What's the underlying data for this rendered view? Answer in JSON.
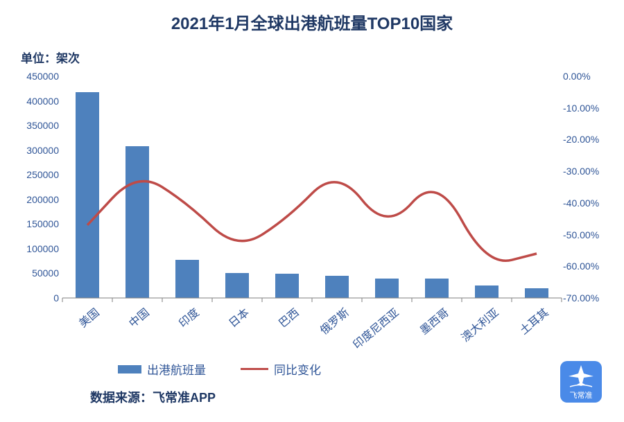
{
  "title": "2021年1月全球出港航班量TOP10国家",
  "title_fontsize": 24,
  "title_color": "#1f3864",
  "unit_label": "单位：架次",
  "unit_fontsize": 17,
  "source_label": "数据来源：飞常准APP",
  "source_fontsize": 18,
  "logo_text": "飞常准",
  "logo_bg": "#4a8ae8",
  "chart": {
    "type": "bar+line",
    "categories": [
      "美国",
      "中国",
      "印度",
      "日本",
      "巴西",
      "俄罗斯",
      "印度尼西亚",
      "墨西哥",
      "澳大利亚",
      "土耳其"
    ],
    "bar_series": {
      "name": "出港航班量",
      "values": [
        418000,
        308000,
        78000,
        50000,
        49000,
        45000,
        40000,
        40000,
        25000,
        20000
      ],
      "color": "#4e81bd",
      "bar_width": 0.48
    },
    "line_series": {
      "name": "同比变化",
      "values": [
        -47,
        -30,
        -40,
        -55,
        -45,
        -29,
        -49,
        -31,
        -60,
        -56
      ],
      "color": "#be4b48",
      "line_width": 3.5
    },
    "y_left": {
      "min": 0,
      "max": 450000,
      "step": 50000,
      "labels": [
        "0",
        "50000",
        "100000",
        "150000",
        "200000",
        "250000",
        "300000",
        "350000",
        "400000",
        "450000"
      ]
    },
    "y_right": {
      "min": -70,
      "max": 0,
      "step": 10,
      "labels": [
        "0.00%",
        "-10.00%",
        "-20.00%",
        "-30.00%",
        "-40.00%",
        "-50.00%",
        "-60.00%",
        "-70.00%"
      ]
    },
    "axis_fontsize": 14,
    "xlabel_fontsize": 16,
    "axis_color": "#2f5597",
    "background_color": "#ffffff"
  },
  "legend": {
    "fontsize": 17,
    "bar_label": "出港航班量",
    "line_label": "同比变化"
  }
}
